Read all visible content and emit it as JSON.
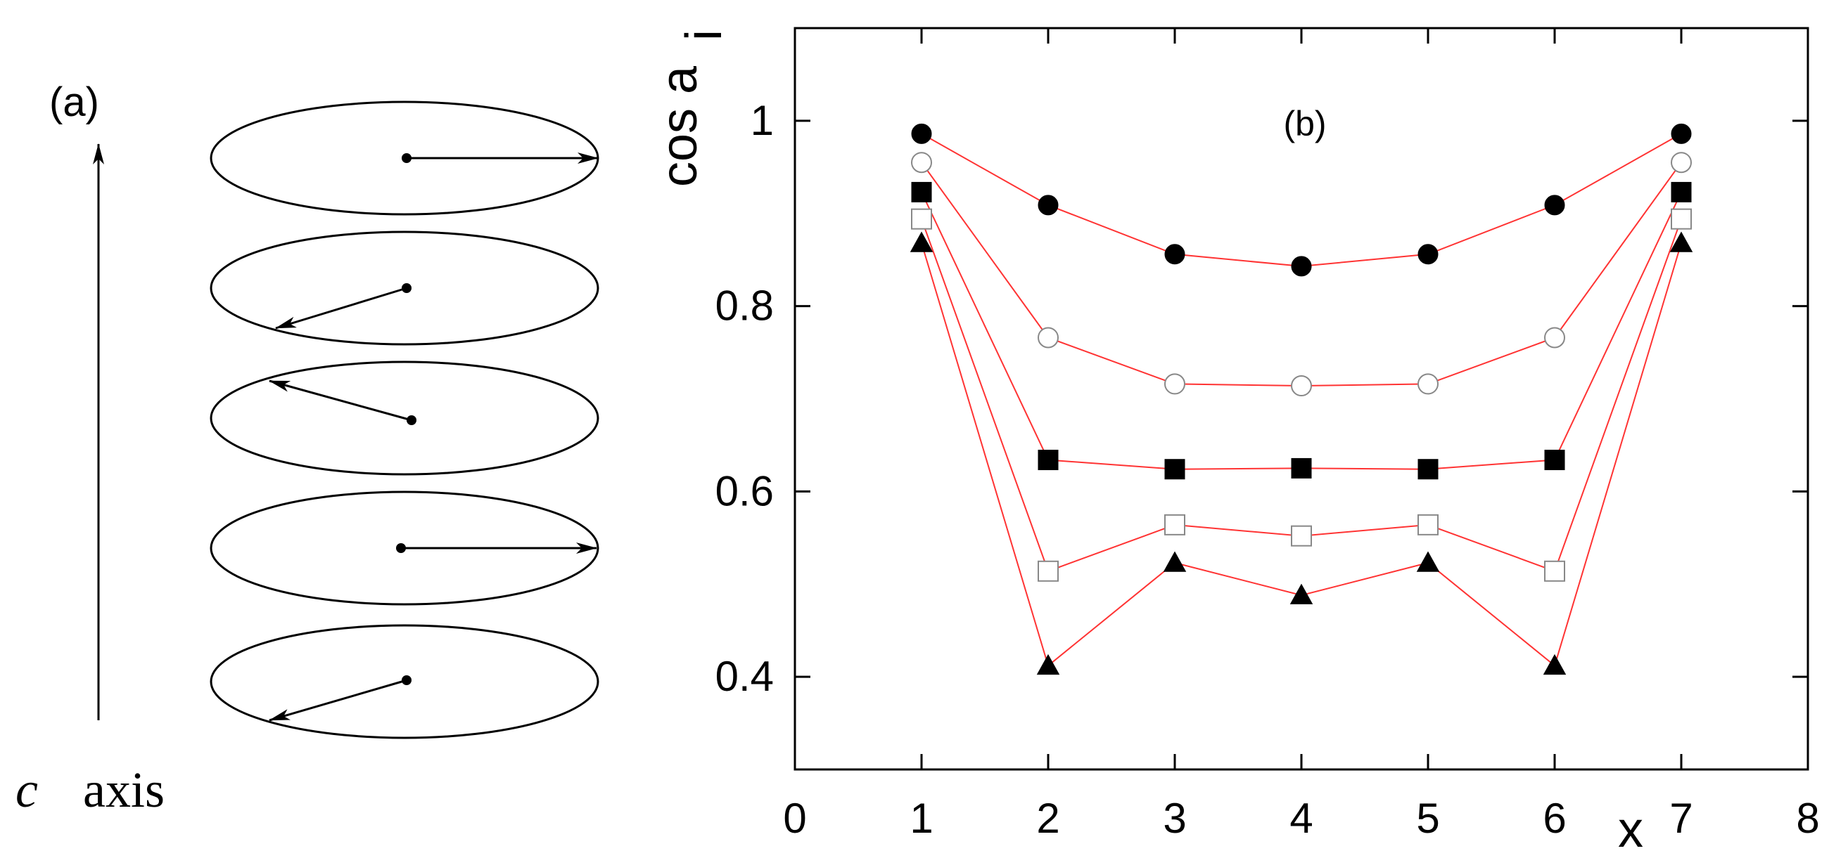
{
  "panel_a": {
    "label": "(a)",
    "axis_label_c": "c",
    "axis_label_axis": "axis",
    "arrow_directions": [
      "right",
      "down-left",
      "up-left",
      "right",
      "down-left"
    ]
  },
  "chart_data": {
    "type": "line",
    "panel_label": "(b)",
    "xlabel": "x",
    "ylabel_main": "cos a",
    "ylabel_subscript": "i",
    "xlim": [
      0,
      8
    ],
    "ylim": [
      0.3,
      1.1
    ],
    "x_ticks": [
      0,
      1,
      2,
      3,
      4,
      5,
      6,
      7,
      8
    ],
    "y_ticks": [
      0.4,
      0.6,
      0.8,
      1
    ],
    "x_tick_labels": [
      "0",
      "1",
      "2",
      "3",
      "4",
      "5",
      "6",
      "7",
      "8"
    ],
    "y_tick_labels": [
      "0.4",
      "0.6",
      "0.8",
      "1"
    ],
    "line_color": "#ff3333",
    "x": [
      1,
      2,
      3,
      4,
      5,
      6,
      7
    ],
    "series": [
      {
        "name": "filled-circle",
        "marker": "circle",
        "filled": true,
        "values": [
          0.986,
          0.909,
          0.856,
          0.843,
          0.856,
          0.909,
          0.986
        ]
      },
      {
        "name": "open-circle",
        "marker": "circle",
        "filled": false,
        "values": [
          0.955,
          0.766,
          0.716,
          0.714,
          0.716,
          0.766,
          0.955
        ]
      },
      {
        "name": "filled-square",
        "marker": "square",
        "filled": true,
        "values": [
          0.923,
          0.634,
          0.624,
          0.625,
          0.624,
          0.634,
          0.923
        ]
      },
      {
        "name": "open-square",
        "marker": "square",
        "filled": false,
        "values": [
          0.894,
          0.514,
          0.564,
          0.552,
          0.564,
          0.514,
          0.894
        ]
      },
      {
        "name": "filled-triangle",
        "marker": "triangle",
        "filled": true,
        "values": [
          0.868,
          0.412,
          0.523,
          0.488,
          0.523,
          0.412,
          0.868
        ]
      }
    ]
  }
}
